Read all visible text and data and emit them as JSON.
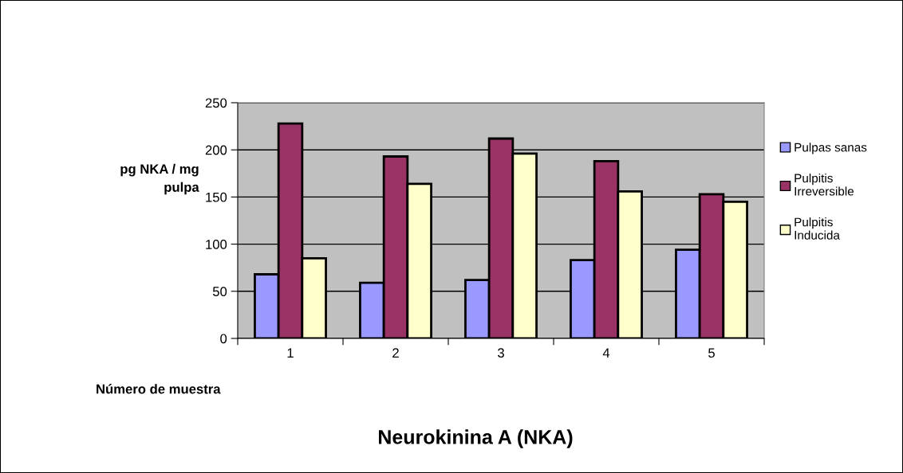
{
  "chart_data": {
    "type": "bar",
    "title": "Neurokinina A (NKA)",
    "xlabel": "Número de muestra",
    "ylabel": "pg NKA / mg\npulpa",
    "categories": [
      "1",
      "2",
      "3",
      "4",
      "5"
    ],
    "series": [
      {
        "name": "Pulpas sanas",
        "color": "#9999ff",
        "values": [
          68,
          59,
          62,
          83,
          94
        ]
      },
      {
        "name": "Pulpitis\nIrreversible",
        "color": "#993366",
        "values": [
          228,
          193,
          212,
          188,
          153
        ]
      },
      {
        "name": "Pulpitis\nInducida",
        "color": "#ffffcc",
        "values": [
          85,
          164,
          196,
          156,
          145
        ]
      }
    ],
    "ylim": [
      0,
      250
    ],
    "yticks": [
      0,
      50,
      100,
      150,
      200,
      250
    ],
    "grid": "y",
    "legend": "right"
  }
}
